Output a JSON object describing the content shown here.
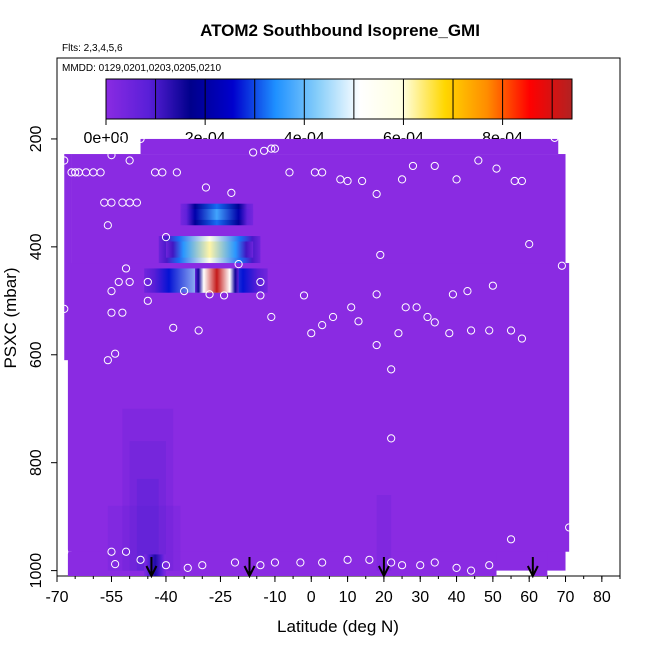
{
  "chart_data": {
    "type": "heatmap",
    "title": "ATOM2 Southbound Isoprene_GMI",
    "subtitle_flights": "Flts: 2,3,4,5,6",
    "subtitle_dates": "MMDD: 0129,0201,0203,0205,0210",
    "xlabel": "Latitude (deg N)",
    "ylabel": "PSXC (mbar)",
    "xlim": [
      -70,
      85
    ],
    "ylim": [
      1010,
      50
    ],
    "y_inverted": true,
    "x_ticks": [
      -70,
      -55,
      -40,
      -25,
      -10,
      0,
      10,
      20,
      30,
      40,
      50,
      60,
      70,
      80
    ],
    "y_ticks": [
      200,
      400,
      600,
      800,
      1000
    ],
    "colorbar": {
      "range": [
        0,
        0.00094
      ],
      "tick_values": [
        0,
        0.0002,
        0.0004,
        0.0006,
        0.0008
      ],
      "tick_labels": [
        "0e+00",
        "2e-04",
        "4e-04",
        "6e-04",
        "8e-04"
      ],
      "colors": [
        "#8a2be2",
        "#5a1fd8",
        "#00008b",
        "#0000cd",
        "#1e90ff",
        "#87cefa",
        "#ffffff",
        "#ffffe0",
        "#ffd700",
        "#ff8c00",
        "#ff0000",
        "#b22222"
      ]
    },
    "background_value": 0.0,
    "background_color": "#8a2be2",
    "cells": [
      {
        "lat": [
          -36,
          -16
        ],
        "p": [
          320,
          360
        ],
        "v": 0.0003
      },
      {
        "lat": [
          -36,
          -16
        ],
        "p": [
          330,
          350
        ],
        "v": 0.00035
      },
      {
        "lat": [
          -42,
          -14
        ],
        "p": [
          380,
          430
        ],
        "v": 0.00055
      },
      {
        "lat": [
          -40,
          -16
        ],
        "p": [
          390,
          420
        ],
        "v": 0.0006
      },
      {
        "lat": [
          -46,
          -12
        ],
        "p": [
          440,
          485
        ],
        "v": 0.00045
      },
      {
        "lat": [
          -32,
          -20
        ],
        "p": [
          440,
          485
        ],
        "v": 0.0009
      },
      {
        "lat": [
          -46,
          -40
        ],
        "p": [
          970,
          1010
        ],
        "v": 0.00012
      }
    ],
    "sample_points": [
      {
        "lat": -68,
        "p": 240
      },
      {
        "lat": -66,
        "p": 262
      },
      {
        "lat": -65,
        "p": 262
      },
      {
        "lat": -64,
        "p": 262
      },
      {
        "lat": -62,
        "p": 262
      },
      {
        "lat": -60,
        "p": 262
      },
      {
        "lat": -58,
        "p": 262
      },
      {
        "lat": -55,
        "p": 230
      },
      {
        "lat": -52,
        "p": 200
      },
      {
        "lat": -50,
        "p": 240
      },
      {
        "lat": -47,
        "p": 200
      },
      {
        "lat": -43,
        "p": 262
      },
      {
        "lat": -41,
        "p": 262
      },
      {
        "lat": -37,
        "p": 262
      },
      {
        "lat": -29,
        "p": 290
      },
      {
        "lat": -22,
        "p": 300
      },
      {
        "lat": -16,
        "p": 225
      },
      {
        "lat": -13,
        "p": 222
      },
      {
        "lat": -11,
        "p": 218
      },
      {
        "lat": -10,
        "p": 218
      },
      {
        "lat": -6,
        "p": 262
      },
      {
        "lat": 1,
        "p": 262
      },
      {
        "lat": 3,
        "p": 262
      },
      {
        "lat": 8,
        "p": 275
      },
      {
        "lat": 10,
        "p": 278
      },
      {
        "lat": 14,
        "p": 278
      },
      {
        "lat": 18,
        "p": 302
      },
      {
        "lat": 25,
        "p": 275
      },
      {
        "lat": 28,
        "p": 250
      },
      {
        "lat": 34,
        "p": 250
      },
      {
        "lat": 40,
        "p": 275
      },
      {
        "lat": 46,
        "p": 240
      },
      {
        "lat": 51,
        "p": 255
      },
      {
        "lat": 56,
        "p": 278
      },
      {
        "lat": 58,
        "p": 278
      },
      {
        "lat": 67,
        "p": 198
      },
      {
        "lat": 70,
        "p": 198
      },
      {
        "lat": -57,
        "p": 318
      },
      {
        "lat": -55,
        "p": 318
      },
      {
        "lat": -52,
        "p": 318
      },
      {
        "lat": -50,
        "p": 318
      },
      {
        "lat": -48,
        "p": 318
      },
      {
        "lat": -56,
        "p": 360
      },
      {
        "lat": -40,
        "p": 382
      },
      {
        "lat": -51,
        "p": 440
      },
      {
        "lat": -50,
        "p": 465
      },
      {
        "lat": -45,
        "p": 465
      },
      {
        "lat": -55,
        "p": 482
      },
      {
        "lat": -53,
        "p": 465
      },
      {
        "lat": -35,
        "p": 482
      },
      {
        "lat": -28,
        "p": 488
      },
      {
        "lat": -24,
        "p": 490
      },
      {
        "lat": -20,
        "p": 432
      },
      {
        "lat": -14,
        "p": 465
      },
      {
        "lat": -14,
        "p": 490
      },
      {
        "lat": -11,
        "p": 530
      },
      {
        "lat": -2,
        "p": 490
      },
      {
        "lat": 0,
        "p": 560
      },
      {
        "lat": 6,
        "p": 530
      },
      {
        "lat": 11,
        "p": 512
      },
      {
        "lat": 13,
        "p": 538
      },
      {
        "lat": 18,
        "p": 488
      },
      {
        "lat": 18,
        "p": 582
      },
      {
        "lat": 24,
        "p": 560
      },
      {
        "lat": 26,
        "p": 512
      },
      {
        "lat": 29,
        "p": 512
      },
      {
        "lat": 32,
        "p": 530
      },
      {
        "lat": 34,
        "p": 540
      },
      {
        "lat": 39,
        "p": 488
      },
      {
        "lat": 43,
        "p": 482
      },
      {
        "lat": 50,
        "p": 472
      },
      {
        "lat": 55,
        "p": 555
      },
      {
        "lat": 58,
        "p": 570
      },
      {
        "lat": 60,
        "p": 395
      },
      {
        "lat": 69,
        "p": 435
      },
      {
        "lat": 19,
        "p": 415
      },
      {
        "lat": -55,
        "p": 522
      },
      {
        "lat": -52,
        "p": 522
      },
      {
        "lat": -45,
        "p": 500
      },
      {
        "lat": -38,
        "p": 550
      },
      {
        "lat": -31,
        "p": 555
      },
      {
        "lat": 3,
        "p": 545
      },
      {
        "lat": 38,
        "p": 560
      },
      {
        "lat": 44,
        "p": 555
      },
      {
        "lat": 49,
        "p": 555
      },
      {
        "lat": -68,
        "p": 515
      },
      {
        "lat": -56,
        "p": 610
      },
      {
        "lat": -54,
        "p": 598
      },
      {
        "lat": 22,
        "p": 627
      },
      {
        "lat": 22,
        "p": 755
      },
      {
        "lat": -68,
        "p": 965
      },
      {
        "lat": -55,
        "p": 965
      },
      {
        "lat": -51,
        "p": 965
      },
      {
        "lat": -47,
        "p": 980
      },
      {
        "lat": -40,
        "p": 990
      },
      {
        "lat": -34,
        "p": 995
      },
      {
        "lat": -30,
        "p": 990
      },
      {
        "lat": -21,
        "p": 985
      },
      {
        "lat": -14,
        "p": 990
      },
      {
        "lat": -10,
        "p": 985
      },
      {
        "lat": -3,
        "p": 985
      },
      {
        "lat": 3,
        "p": 985
      },
      {
        "lat": 10,
        "p": 980
      },
      {
        "lat": 16,
        "p": 980
      },
      {
        "lat": 22,
        "p": 985
      },
      {
        "lat": 25,
        "p": 990
      },
      {
        "lat": 30,
        "p": 990
      },
      {
        "lat": 34,
        "p": 985
      },
      {
        "lat": 40,
        "p": 995
      },
      {
        "lat": 44,
        "p": 1000
      },
      {
        "lat": 49,
        "p": 990
      },
      {
        "lat": 55,
        "p": 942
      },
      {
        "lat": 71,
        "p": 920
      },
      {
        "lat": -54,
        "p": 988
      }
    ],
    "arrow_latitudes": [
      -44,
      -17,
      20,
      61
    ]
  }
}
